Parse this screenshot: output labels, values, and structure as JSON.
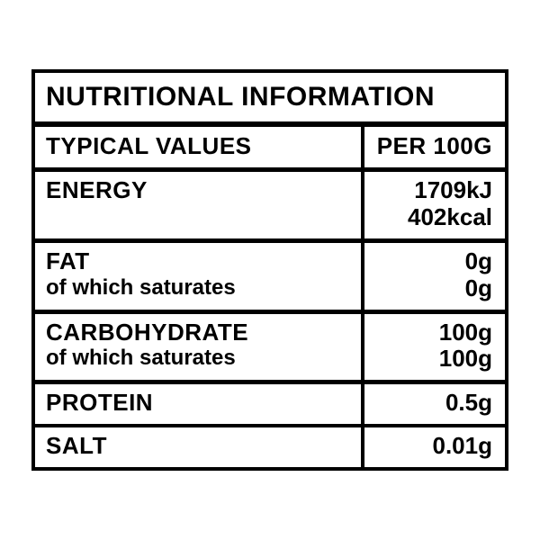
{
  "title": "NUTRITIONAL INFORMATION",
  "header": {
    "left": "TYPICAL VALUES",
    "right": "PER 100G"
  },
  "rows": [
    {
      "leftMain": "ENERGY",
      "leftSub": null,
      "right1": "1709kJ",
      "right2": "402kcal"
    },
    {
      "leftMain": "FAT",
      "leftSub": "of which saturates",
      "right1": "0g",
      "right2": "0g"
    },
    {
      "leftMain": "CARBOHYDRATE",
      "leftSub": "of which saturates",
      "right1": "100g",
      "right2": "100g"
    },
    {
      "leftMain": "PROTEIN",
      "leftSub": null,
      "right1": "0.5g",
      "right2": null
    },
    {
      "leftMain": "SALT",
      "leftSub": null,
      "right1": "0.01g",
      "right2": null
    }
  ],
  "colors": {
    "border": "#000000",
    "background": "#ffffff",
    "text": "#000000"
  }
}
